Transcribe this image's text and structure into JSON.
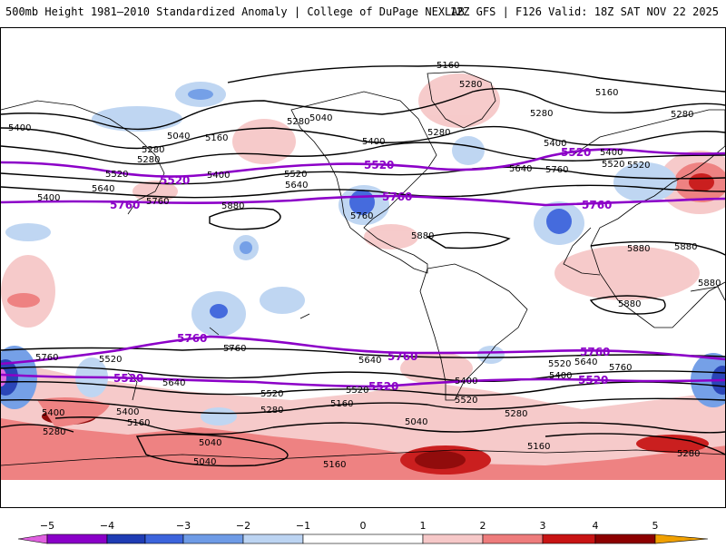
{
  "header": {
    "title": "500mb Height 1981–2010 Standardized Anomaly | College of DuPage NEXLAB",
    "run_info": "12Z GFS | F126 Valid: 18Z SAT NOV 22 2025"
  },
  "contour_labels": {
    "black": [
      "5160",
      "5280",
      "5160",
      "5280",
      "5400",
      "5280",
      "5040",
      "5160",
      "5280",
      "5400",
      "5400",
      "5280",
      "5520",
      "5640",
      "5760",
      "5520",
      "5400",
      "5520",
      "5640",
      "5280",
      "5400",
      "5520",
      "5640",
      "5760",
      "5880",
      "5760",
      "5880",
      "5880",
      "5880",
      "5880",
      "5880",
      "5760",
      "5760",
      "5520",
      "5640",
      "5400",
      "5520",
      "5280",
      "5160",
      "5040",
      "5280",
      "5400",
      "5520",
      "5640",
      "5400",
      "5520",
      "5160",
      "5040",
      "5160",
      "5040",
      "5400",
      "5520",
      "5640",
      "5760",
      "5280",
      "5160",
      "5280",
      "5040",
      "5280",
      "5400"
    ],
    "purple": [
      "5520",
      "5520",
      "5520",
      "5760",
      "5760",
      "5760",
      "5760",
      "5760",
      "5760",
      "5520",
      "5520",
      "5520"
    ]
  },
  "colorbar": {
    "ticks": [
      "−5",
      "−4",
      "−3",
      "−2",
      "−1",
      "0",
      "1",
      "2",
      "3",
      "4",
      "5"
    ],
    "colors": {
      "n5": "#e060e0",
      "n4": "#8a00c8",
      "n3": "#1f3cb4",
      "n25": "#3c64dc",
      "n2": "#6e9be6",
      "n1": "#bcd4f2",
      "z": "#ffffff",
      "p1": "#f6c8c8",
      "p2": "#ee7c7c",
      "p3": "#c81414",
      "p4": "#8c0000",
      "p5": "#f0a000"
    }
  },
  "colors": {
    "contour": "#000000",
    "contour_5520_5760": "#8c00c8",
    "coast": "#000000"
  }
}
